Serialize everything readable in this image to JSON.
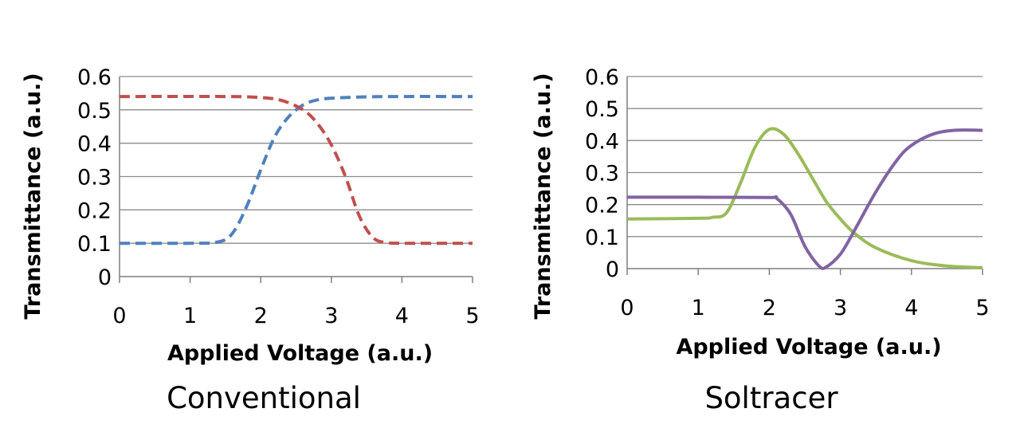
{
  "chart_data": [
    {
      "type": "line",
      "caption": "Conventional",
      "xlabel": "Applied Voltage (a.u.)",
      "ylabel": "Transmittance (a.u.)",
      "xlim": [
        0,
        5
      ],
      "ylim": [
        0,
        0.6
      ],
      "x_ticks": [
        "0",
        "1",
        "2",
        "3",
        "4",
        "5"
      ],
      "y_ticks": [
        "0",
        "0.1",
        "0.2",
        "0.3",
        "0.4",
        "0.5",
        "0.6"
      ],
      "grid": true,
      "series": [
        {
          "color": "#4f81bd",
          "style": "dashed",
          "points": [
            [
              0,
              0.1
            ],
            [
              1.0,
              0.1
            ],
            [
              1.4,
              0.104
            ],
            [
              1.6,
              0.13
            ],
            [
              1.8,
              0.21
            ],
            [
              2.0,
              0.32
            ],
            [
              2.2,
              0.42
            ],
            [
              2.4,
              0.48
            ],
            [
              2.6,
              0.515
            ],
            [
              2.8,
              0.53
            ],
            [
              3.0,
              0.535
            ],
            [
              3.5,
              0.539
            ],
            [
              4.0,
              0.54
            ],
            [
              5.0,
              0.54
            ]
          ]
        },
        {
          "color": "#c0504d",
          "style": "dashed",
          "points": [
            [
              0,
              0.54
            ],
            [
              1.5,
              0.54
            ],
            [
              2.0,
              0.537
            ],
            [
              2.3,
              0.528
            ],
            [
              2.6,
              0.5
            ],
            [
              2.8,
              0.46
            ],
            [
              3.0,
              0.395
            ],
            [
              3.2,
              0.3
            ],
            [
              3.4,
              0.18
            ],
            [
              3.6,
              0.115
            ],
            [
              3.8,
              0.102
            ],
            [
              4.0,
              0.1
            ],
            [
              5.0,
              0.1
            ]
          ]
        }
      ]
    },
    {
      "type": "line",
      "caption": "Soltracer",
      "xlabel": "Applied Voltage (a.u.)",
      "ylabel": "Transmittance (a.u.)",
      "xlim": [
        0,
        5
      ],
      "ylim": [
        0,
        0.6
      ],
      "x_ticks": [
        "0",
        "1",
        "2",
        "3",
        "4",
        "5"
      ],
      "y_ticks": [
        "0",
        "0.1",
        "0.2",
        "0.3",
        "0.4",
        "0.5",
        "0.6"
      ],
      "grid": true,
      "series": [
        {
          "color": "#9bbb59",
          "style": "solid",
          "points": [
            [
              0,
              0.155
            ],
            [
              1.0,
              0.157
            ],
            [
              1.2,
              0.16
            ],
            [
              1.4,
              0.175
            ],
            [
              1.6,
              0.27
            ],
            [
              1.8,
              0.38
            ],
            [
              2.0,
              0.435
            ],
            [
              2.2,
              0.42
            ],
            [
              2.4,
              0.36
            ],
            [
              2.6,
              0.285
            ],
            [
              2.8,
              0.21
            ],
            [
              3.0,
              0.155
            ],
            [
              3.2,
              0.11
            ],
            [
              3.5,
              0.065
            ],
            [
              4.0,
              0.025
            ],
            [
              4.5,
              0.008
            ],
            [
              5.0,
              0.003
            ]
          ]
        },
        {
          "color": "#8064a2",
          "style": "solid",
          "points": [
            [
              0,
              0.223
            ],
            [
              1.0,
              0.223
            ],
            [
              2.0,
              0.222
            ],
            [
              2.1,
              0.22
            ],
            [
              2.3,
              0.17
            ],
            [
              2.5,
              0.07
            ],
            [
              2.7,
              0.008
            ],
            [
              2.8,
              0.005
            ],
            [
              3.0,
              0.045
            ],
            [
              3.2,
              0.12
            ],
            [
              3.5,
              0.24
            ],
            [
              3.8,
              0.34
            ],
            [
              4.0,
              0.385
            ],
            [
              4.3,
              0.42
            ],
            [
              4.6,
              0.432
            ],
            [
              5.0,
              0.432
            ]
          ]
        }
      ]
    }
  ]
}
